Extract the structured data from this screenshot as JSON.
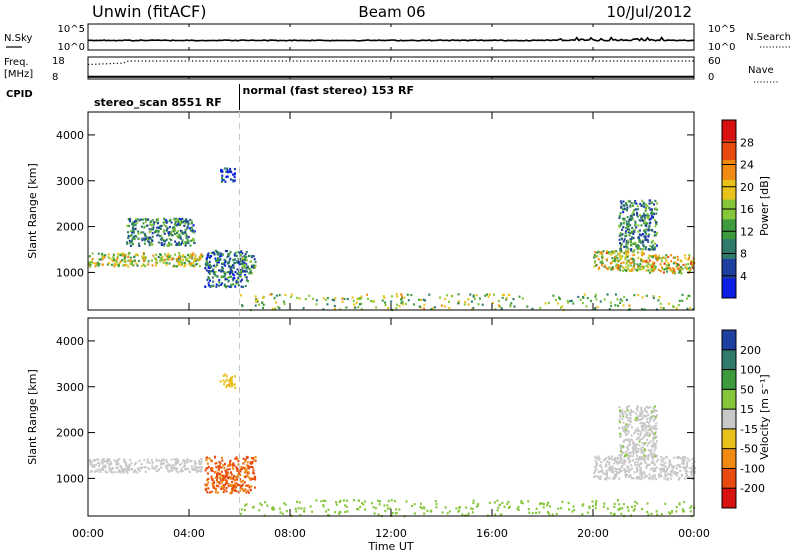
{
  "header": {
    "station": "Unwin (fitACF)",
    "beam": "Beam 06",
    "date": "10/Jul/2012"
  },
  "nsky_panel": {
    "left_label": "N.Sky",
    "right_label": "N.Search",
    "y_ticks_left": [
      "10^5",
      "10^0"
    ],
    "y_ticks_right": [
      "10^5",
      "10^0"
    ]
  },
  "freq_panel": {
    "left_label_top": "Freq.",
    "left_label_bottom": "[MHz]",
    "right_label": "Nave",
    "y_ticks_left": [
      "18",
      "8"
    ],
    "y_ticks_right": [
      "60",
      "0"
    ],
    "freq_mhz": 9.0,
    "nave_level": 49
  },
  "cpid": {
    "label": "CPID",
    "modes": [
      {
        "text": "stereo_scan 8551 RF",
        "start_h": 0.0
      },
      {
        "text": "normal (fast stereo) 153 RF",
        "start_h": 6.0
      }
    ]
  },
  "x_axis": {
    "label": "Time UT",
    "range_h": [
      0,
      24
    ],
    "ticks": [
      "00:00",
      "04:00",
      "08:00",
      "12:00",
      "16:00",
      "20:00",
      "00:00"
    ]
  },
  "colors": {
    "power": [
      "#0a1ee6",
      "#1f3fa0",
      "#2f7a6a",
      "#3d9a3d",
      "#86c63a",
      "#e8c21a",
      "#f08a12",
      "#e84a10",
      "#d81010"
    ],
    "velocity": [
      "#d81010",
      "#e84a10",
      "#f08a12",
      "#e8c21a",
      "#c8c8c8",
      "#86c63a",
      "#3d9a3d",
      "#2f7a6a",
      "#1f3fa0"
    ]
  },
  "chart_data": [
    {
      "type": "heatmap",
      "title": "",
      "xlabel": "",
      "ylabel": "Slant Range [km]",
      "ylim": [
        180,
        4500
      ],
      "y_ticks": [
        "1000",
        "2000",
        "3000",
        "4000"
      ],
      "colorbar": {
        "label": "Power [dB]",
        "range": [
          0,
          32
        ],
        "ticks": [
          "4",
          "8",
          "12",
          "16",
          "20",
          "24",
          "28"
        ]
      },
      "regions": [
        {
          "t": [
            0.0,
            4.5
          ],
          "r": [
            1150,
            1450
          ],
          "value": 17
        },
        {
          "t": [
            4.6,
            6.3
          ],
          "r": [
            700,
            1500
          ],
          "value": 8
        },
        {
          "t": [
            6.0,
            6.6
          ],
          "r": [
            1000,
            1400
          ],
          "value": 12
        },
        {
          "t": [
            5.2,
            5.8
          ],
          "r": [
            3000,
            3300
          ],
          "value": 5
        },
        {
          "t": [
            1.5,
            4.2
          ],
          "r": [
            1600,
            2200
          ],
          "value": 10
        },
        {
          "t": [
            20.0,
            22.0
          ],
          "r": [
            1050,
            1500
          ],
          "value": 18
        },
        {
          "t": [
            22.0,
            24.0
          ],
          "r": [
            1000,
            1400
          ],
          "value": 19
        },
        {
          "t": [
            21.0,
            22.5
          ],
          "r": [
            1500,
            2600
          ],
          "value": 10
        },
        {
          "t": [
            6.0,
            24.0
          ],
          "r": [
            200,
            550
          ],
          "value": 15
        }
      ]
    },
    {
      "type": "heatmap",
      "title": "",
      "xlabel": "Time UT",
      "ylabel": "Slant Range [km]",
      "ylim": [
        180,
        4500
      ],
      "y_ticks": [
        "1000",
        "2000",
        "3000",
        "4000"
      ],
      "colorbar": {
        "label": "Velocity [m s⁻¹]",
        "ticks": [
          "200",
          "100",
          "50",
          "15",
          "-15",
          "-50",
          "-100",
          "-200"
        ]
      },
      "regions": [
        {
          "t": [
            0.0,
            4.5
          ],
          "r": [
            1150,
            1450
          ],
          "value": 0
        },
        {
          "t": [
            4.6,
            6.6
          ],
          "r": [
            700,
            1500
          ],
          "value": -120
        },
        {
          "t": [
            5.2,
            5.8
          ],
          "r": [
            3000,
            3300
          ],
          "value": -40
        },
        {
          "t": [
            20.0,
            24.0
          ],
          "r": [
            1000,
            1500
          ],
          "value": 0
        },
        {
          "t": [
            21.0,
            22.5
          ],
          "r": [
            1500,
            2600
          ],
          "value": 5
        },
        {
          "t": [
            6.0,
            24.0
          ],
          "r": [
            200,
            550
          ],
          "value": 30
        }
      ]
    }
  ]
}
